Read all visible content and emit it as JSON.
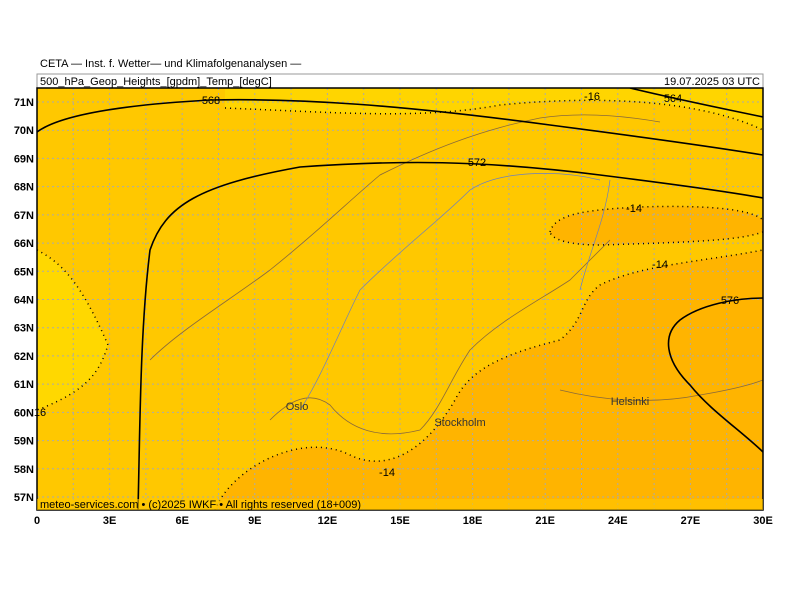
{
  "header": {
    "title": "CETA — Inst. f. Wetter— und Klimafolgenanalysen —",
    "subtitle": "500_hPa_Geop_Heights_[gpdm]_Temp_[degC]",
    "date": "19.07.2025 03 UTC"
  },
  "map": {
    "lat_labels": [
      "71N",
      "70N",
      "69N",
      "68N",
      "67N",
      "66N",
      "65N",
      "64N",
      "63N",
      "62N",
      "61N",
      "60N",
      "59N",
      "58N",
      "57N"
    ],
    "lon_labels": [
      "0",
      "3E",
      "6E",
      "9E",
      "12E",
      "15E",
      "18E",
      "21E",
      "24E",
      "27E",
      "30E"
    ],
    "contour_labels": [
      "568",
      "572",
      "564",
      "576",
      "-16",
      "-14",
      "-14",
      "-14",
      "16"
    ],
    "cities": [
      "Oslo",
      "Stockholm",
      "Helsinki"
    ],
    "footer": "meteo-services.com • (c)2025 IWKF • All rights reserved (18+009)"
  }
}
